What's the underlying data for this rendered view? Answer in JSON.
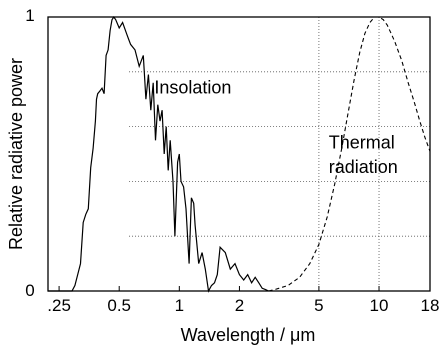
{
  "chart_data": {
    "type": "line",
    "xlabel": "Wavelength / μm",
    "ylabel": "Relative radiative power",
    "x_scale": "log",
    "xlim": [
      0.22,
      18
    ],
    "ylim": [
      0,
      1
    ],
    "x_ticks": [
      {
        "value": 0.25,
        "label": ".25"
      },
      {
        "value": 0.5,
        "label": "0.5"
      },
      {
        "value": 1,
        "label": "1"
      },
      {
        "value": 2,
        "label": "2"
      },
      {
        "value": 5,
        "label": "5"
      },
      {
        "value": 10,
        "label": "10"
      },
      {
        "value": 18,
        "label": "18"
      }
    ],
    "y_tick_labels": {
      "min": "0",
      "max": "1"
    },
    "grid": "dotted horizontal lines at 0.2, 0.4, 0.6, 0.8 (right portion) and vertical dotted lines at 5 and 10",
    "grid_y": [
      0.2,
      0.4,
      0.6,
      0.8
    ],
    "grid_x": [
      5,
      10
    ],
    "series": [
      {
        "name": "Insolation",
        "style": "solid",
        "color": "#000000",
        "x": [
          0.22,
          0.29,
          0.3,
          0.31,
          0.32,
          0.33,
          0.34,
          0.35,
          0.36,
          0.37,
          0.38,
          0.385,
          0.39,
          0.4,
          0.41,
          0.42,
          0.43,
          0.44,
          0.45,
          0.46,
          0.47,
          0.48,
          0.5,
          0.52,
          0.55,
          0.57,
          0.6,
          0.63,
          0.66,
          0.68,
          0.7,
          0.72,
          0.74,
          0.76,
          0.78,
          0.8,
          0.82,
          0.84,
          0.86,
          0.88,
          0.9,
          0.93,
          0.95,
          0.98,
          1.0,
          1.02,
          1.05,
          1.08,
          1.12,
          1.15,
          1.18,
          1.2,
          1.25,
          1.3,
          1.35,
          1.4,
          1.45,
          1.5,
          1.55,
          1.6,
          1.7,
          1.8,
          1.9,
          2.0,
          2.1,
          2.2,
          2.3,
          2.4,
          2.5,
          2.6,
          2.7,
          2.8
        ],
        "y": [
          0,
          0,
          0.02,
          0.06,
          0.1,
          0.25,
          0.28,
          0.3,
          0.45,
          0.52,
          0.62,
          0.7,
          0.72,
          0.73,
          0.74,
          0.72,
          0.86,
          0.88,
          0.95,
          0.99,
          1.0,
          0.99,
          0.96,
          0.98,
          0.93,
          0.9,
          0.88,
          0.82,
          0.86,
          0.7,
          0.79,
          0.66,
          0.76,
          0.55,
          0.68,
          0.62,
          0.66,
          0.5,
          0.6,
          0.44,
          0.55,
          0.4,
          0.2,
          0.47,
          0.5,
          0.4,
          0.38,
          0.3,
          0.1,
          0.34,
          0.32,
          0.24,
          0.1,
          0.14,
          0.08,
          0.0,
          0.02,
          0.03,
          0.06,
          0.16,
          0.14,
          0.08,
          0.1,
          0.06,
          0.04,
          0.06,
          0.03,
          0.05,
          0.03,
          0.01,
          0.005,
          0
        ]
      },
      {
        "name": "Thermal radiation",
        "style": "dashed",
        "color": "#000000",
        "x": [
          2.8,
          3.0,
          3.5,
          4.0,
          4.5,
          5.0,
          5.5,
          6.0,
          6.5,
          7.0,
          7.5,
          8.0,
          8.5,
          9.0,
          9.5,
          10.0,
          10.5,
          11.0,
          11.5,
          12.0,
          13.0,
          14.0,
          15.0,
          16.0,
          17.0,
          18.0
        ],
        "y": [
          0,
          0.005,
          0.02,
          0.05,
          0.1,
          0.17,
          0.27,
          0.39,
          0.52,
          0.65,
          0.77,
          0.87,
          0.94,
          0.98,
          1.0,
          1.0,
          0.99,
          0.97,
          0.94,
          0.91,
          0.84,
          0.76,
          0.69,
          0.62,
          0.56,
          0.51
        ]
      }
    ],
    "annotations": [
      {
        "text": "Insolation",
        "x": 0.75,
        "y": 0.72
      },
      {
        "text": "Thermal",
        "x": 5.6,
        "y": 0.52
      },
      {
        "text": "radiation",
        "x": 5.6,
        "y": 0.43
      }
    ]
  }
}
